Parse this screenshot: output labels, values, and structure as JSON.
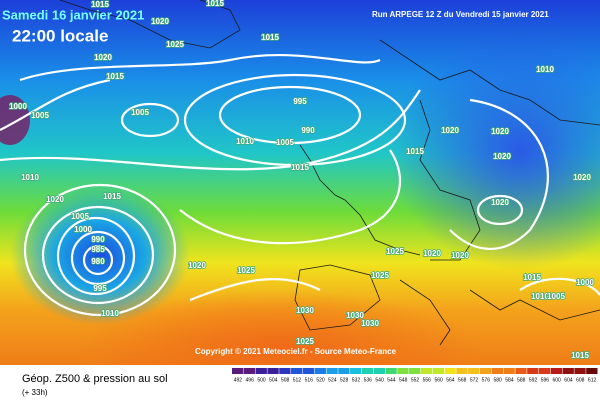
{
  "header": {
    "date": "Samedi 16 janvier 2021",
    "time": "22:00 locale",
    "run": "Run ARPEGE 12 Z du Vendredi 15 janvier 2021"
  },
  "isobar_labels": [
    "1015",
    "1020",
    "1025",
    "1015",
    "1015",
    "1020",
    "1015",
    "1005",
    "1005",
    "1000",
    "995",
    "990",
    "1005",
    "1010",
    "1010",
    "1015",
    "1020",
    "1005",
    "1000",
    "990",
    "985",
    "980",
    "995",
    "1010",
    "1020",
    "1025",
    "1030",
    "1030",
    "1030",
    "1025",
    "1025",
    "1025",
    "1020",
    "1020",
    "1020",
    "1020",
    "1020",
    "1020",
    "1020",
    "1015",
    "1015",
    "1010",
    "1010",
    "1005",
    "1015",
    "1000",
    "1015"
  ],
  "footer": {
    "copyright": "Copyright © 2021 Meteociel.fr - Source Meteo-France",
    "field": "Géop. Z500 & pression au sol",
    "lead_time": "(+ 33h)",
    "scale": [
      "492",
      "496",
      "500",
      "504",
      "508",
      "512",
      "516",
      "520",
      "524",
      "528",
      "532",
      "536",
      "540",
      "544",
      "548",
      "552",
      "556",
      "560",
      "564",
      "568",
      "572",
      "576",
      "580",
      "584",
      "588",
      "592",
      "596",
      "600",
      "604",
      "608",
      "612"
    ]
  }
}
